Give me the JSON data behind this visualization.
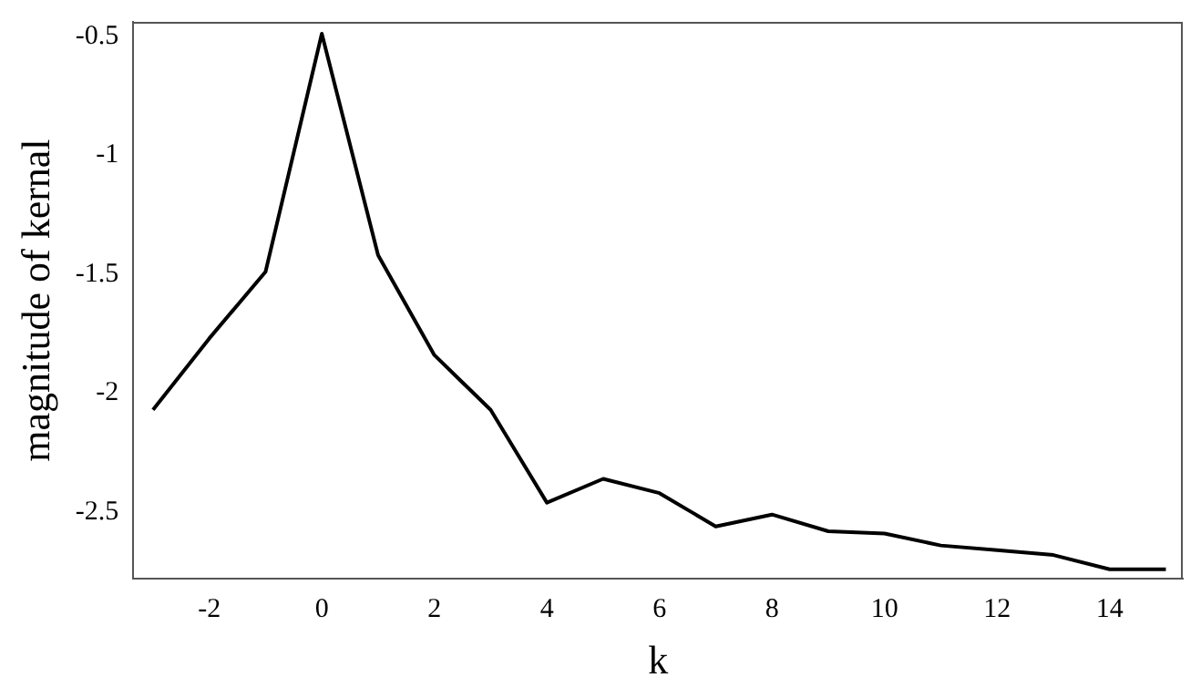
{
  "chart_data": {
    "type": "line",
    "xlabel": "k",
    "ylabel": "magnitude of kernal",
    "x": [
      -3,
      -2,
      -1,
      0,
      1,
      2,
      3,
      4,
      5,
      6,
      7,
      8,
      9,
      10,
      11,
      12,
      13,
      14,
      15
    ],
    "series": [
      {
        "color": "#000000",
        "values": [
          -2.07,
          -1.77,
          -1.49,
          -0.49,
          -1.42,
          -1.84,
          -2.07,
          -2.46,
          -2.36,
          -2.42,
          -2.56,
          -2.51,
          -2.58,
          -2.59,
          -2.64,
          -2.66,
          -2.68,
          -2.74,
          -2.74
        ]
      }
    ],
    "xlim": [
      -3.35,
      15.3
    ],
    "ylim": [
      -2.78,
      -0.44
    ],
    "xticks": [
      -2,
      0,
      2,
      4,
      6,
      8,
      10,
      12,
      14
    ],
    "yticks": [
      -2.5,
      -2,
      -1.5,
      -1,
      -0.5
    ],
    "grid": false,
    "legend": false,
    "marker": "none",
    "line_style": "solid"
  }
}
